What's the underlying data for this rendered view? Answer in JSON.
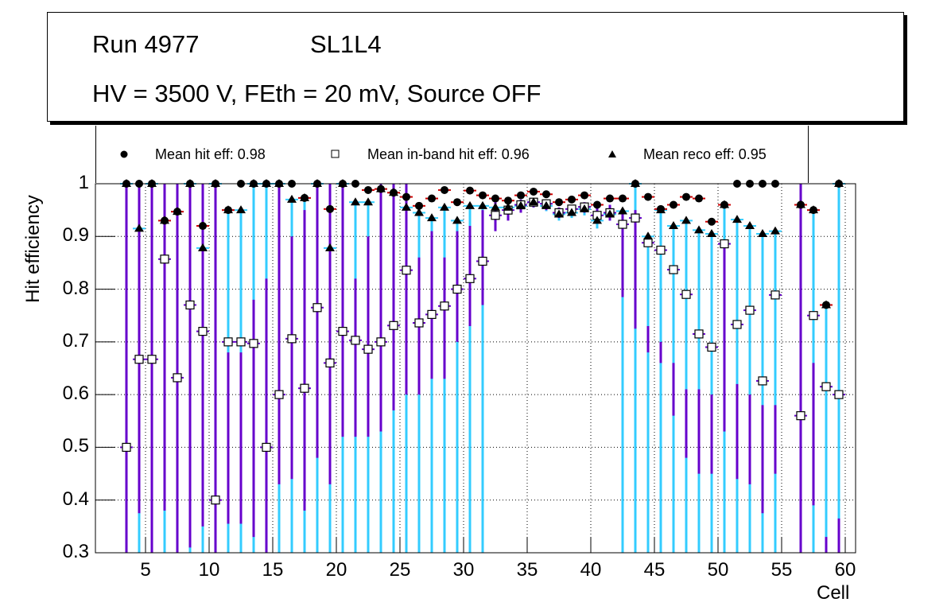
{
  "title_box": {
    "run": "Run 4977",
    "layer": "SL1L4",
    "conditions": "HV = 3500 V, FEth = 20 mV, Source OFF"
  },
  "legend": [
    {
      "marker": "filled-circle",
      "label": "Mean hit  eff: 0.98"
    },
    {
      "marker": "open-square",
      "label": "Mean in-band hit eff: 0.96"
    },
    {
      "marker": "filled-triangle",
      "label": "Mean reco eff: 0.95"
    }
  ],
  "colors": {
    "hit_error": "#cc0000",
    "reco_error": "#33ccff",
    "inband_error": "#6600cc",
    "marker": "#000000",
    "grid": "#000000"
  },
  "chart_data": {
    "type": "scatter",
    "title": "Run 4977 SL1L4 — HV = 3500 V, FEth = 20 mV, Source OFF",
    "xlabel": "Cell",
    "ylabel": "Hit efficiency",
    "xlim": [
      1,
      61
    ],
    "ylim": [
      0.3,
      1.0
    ],
    "xticks": [
      "5",
      "10",
      "15",
      "20",
      "25",
      "30",
      "35",
      "40",
      "45",
      "50",
      "55",
      "60"
    ],
    "yticks": [
      "0.3",
      "0.4",
      "0.5",
      "0.6",
      "0.7",
      "0.8",
      "0.9",
      "1"
    ],
    "grid": true,
    "legend_position": "top",
    "x": [
      3.5,
      4.5,
      5.5,
      6.5,
      7.5,
      8.5,
      9.5,
      10.5,
      11.5,
      12.5,
      13.5,
      14.5,
      15.5,
      16.5,
      17.5,
      18.5,
      19.5,
      20.5,
      21.5,
      22.5,
      23.5,
      24.5,
      25.5,
      26.5,
      27.5,
      28.5,
      29.5,
      30.5,
      31.5,
      32.5,
      33.5,
      34.5,
      35.5,
      36.5,
      37.5,
      38.5,
      39.5,
      40.5,
      41.5,
      42.5,
      43.5,
      44.5,
      45.5,
      46.5,
      47.5,
      48.5,
      49.5,
      50.5,
      51.5,
      52.5,
      53.5,
      54.5,
      56.5,
      57.5,
      58.5,
      59.5
    ],
    "series": [
      {
        "name": "Mean hit eff",
        "marker": "filled-circle",
        "values": [
          1.0,
          1.0,
          1.0,
          0.93,
          0.947,
          1.0,
          0.92,
          1.0,
          0.95,
          1.0,
          1.0,
          1.0,
          1.0,
          1.0,
          0.973,
          1.0,
          0.952,
          1.0,
          1.0,
          0.988,
          0.99,
          0.983,
          0.975,
          0.958,
          0.972,
          0.988,
          0.965,
          0.987,
          0.978,
          0.972,
          0.968,
          0.978,
          0.985,
          0.98,
          0.965,
          0.97,
          0.978,
          0.96,
          0.972,
          0.972,
          1.0,
          0.975,
          0.952,
          0.96,
          0.975,
          0.972,
          0.928,
          0.96,
          1.0,
          1.0,
          1.0,
          1.0,
          0.96,
          0.95,
          0.77,
          1.0
        ]
      },
      {
        "name": "Mean in-band hit eff",
        "marker": "open-square",
        "values": [
          0.5,
          0.667,
          0.667,
          0.857,
          0.632,
          0.77,
          0.72,
          0.4,
          0.7,
          0.7,
          0.697,
          0.5,
          0.6,
          0.706,
          0.612,
          0.765,
          0.66,
          0.72,
          0.703,
          0.686,
          0.7,
          0.731,
          0.836,
          0.736,
          0.752,
          0.768,
          0.8,
          0.82,
          0.853,
          0.94,
          0.95,
          0.96,
          0.965,
          0.962,
          0.945,
          0.952,
          0.956,
          0.94,
          0.945,
          0.923,
          0.935,
          0.888,
          0.874,
          0.837,
          0.79,
          0.715,
          0.69,
          0.886,
          0.733,
          0.76,
          0.626,
          0.789,
          0.56,
          0.75,
          0.615,
          0.6
        ]
      },
      {
        "name": "Mean reco eff",
        "marker": "filled-triangle",
        "values": [
          1.0,
          0.915,
          1.0,
          0.93,
          0.947,
          1.0,
          0.878,
          1.0,
          0.95,
          0.95,
          1.0,
          1.0,
          1.0,
          0.97,
          0.973,
          1.0,
          0.878,
          1.0,
          0.965,
          0.965,
          0.99,
          0.983,
          0.955,
          0.945,
          0.935,
          0.955,
          0.93,
          0.958,
          0.958,
          0.955,
          0.955,
          0.958,
          0.965,
          0.958,
          0.942,
          0.945,
          0.952,
          0.93,
          0.942,
          0.948,
          1.0,
          0.9,
          0.95,
          0.92,
          0.93,
          0.912,
          0.905,
          0.96,
          0.932,
          0.92,
          0.905,
          0.91,
          0.96,
          0.95,
          0.77,
          1.0
        ]
      }
    ],
    "inband_error_low": [
      0.3,
      0.375,
      0.3,
      0.38,
      0.3,
      0.31,
      0.35,
      0.3,
      0.355,
      0.355,
      0.33,
      0.3,
      0.43,
      0.44,
      0.38,
      0.48,
      0.43,
      0.52,
      0.52,
      0.52,
      0.53,
      0.57,
      0.6,
      0.6,
      0.63,
      0.63,
      0.7,
      0.73,
      0.77,
      0.91,
      0.93,
      0.945,
      0.955,
      0.95,
      0.935,
      0.94,
      0.945,
      0.925,
      0.93,
      0.785,
      0.725,
      0.68,
      0.66,
      0.56,
      0.48,
      0.45,
      0.45,
      0.53,
      0.44,
      0.43,
      0.375,
      0.45,
      0.3,
      0.39,
      0.3,
      0.3
    ],
    "inband_error_high": [
      1.0,
      1.0,
      1.0,
      1.0,
      1.0,
      1.0,
      1.0,
      1.0,
      0.68,
      0.68,
      0.78,
      0.82,
      1.0,
      0.9,
      0.95,
      1.0,
      1.0,
      1.0,
      0.82,
      0.9,
      1.0,
      1.0,
      1.0,
      0.86,
      0.91,
      0.86,
      0.91,
      0.92,
      0.95,
      0.97,
      0.96,
      0.97,
      0.97,
      0.97,
      0.955,
      0.96,
      0.965,
      0.955,
      0.96,
      0.945,
      0.95,
      0.73,
      0.7,
      0.66,
      0.61,
      0.61,
      0.6,
      0.88,
      0.62,
      0.6,
      0.58,
      0.58,
      1.0,
      0.66,
      0.33,
      0.365
    ],
    "reco_error_low": [
      0.3,
      0.3,
      0.3,
      0.3,
      0.3,
      0.3,
      0.3,
      0.3,
      0.3,
      0.3,
      0.3,
      0.3,
      0.3,
      0.3,
      0.3,
      0.3,
      0.3,
      0.3,
      0.3,
      0.3,
      0.3,
      0.3,
      0.3,
      0.3,
      0.3,
      0.3,
      0.3,
      0.3,
      0.3,
      0.92,
      0.935,
      0.948,
      0.955,
      0.948,
      0.93,
      0.935,
      0.94,
      0.915,
      0.93,
      0.3,
      0.3,
      0.3,
      0.3,
      0.3,
      0.3,
      0.3,
      0.3,
      0.3,
      0.3,
      0.3,
      0.3,
      0.3,
      0.3,
      0.3,
      0.3,
      0.3
    ]
  }
}
